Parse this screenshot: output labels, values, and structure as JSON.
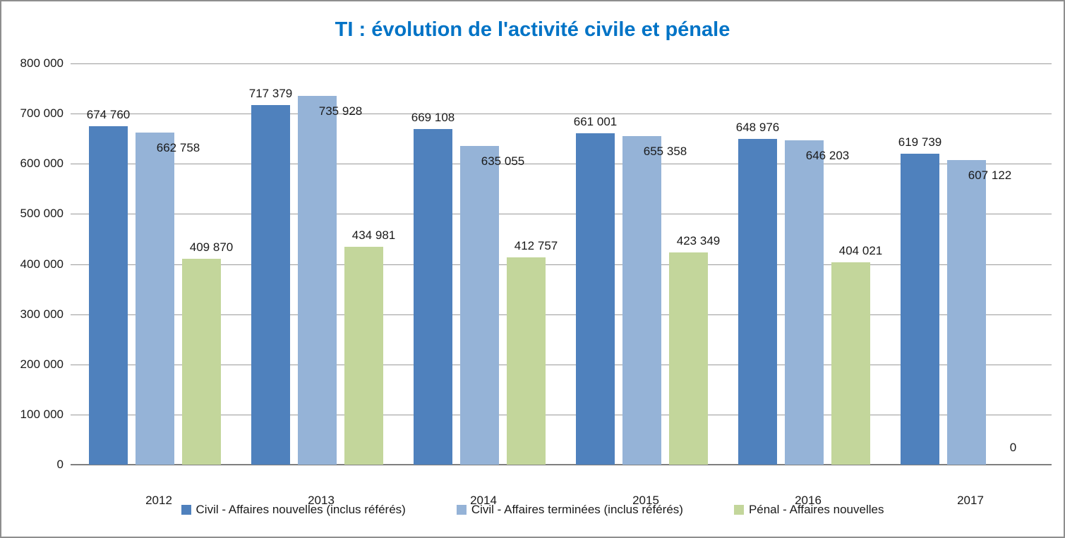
{
  "chart_data": {
    "type": "bar",
    "title": "TI : évolution de l'activité civile et pénale",
    "title_color": "#0073C6",
    "categories": [
      "2012",
      "2013",
      "2014",
      "2015",
      "2016",
      "2017"
    ],
    "series": [
      {
        "name": "Civil - Affaires nouvelles (inclus référés)",
        "color": "#4F81BD",
        "values": [
          674760,
          717379,
          669108,
          661001,
          648976,
          619739
        ]
      },
      {
        "name": "Civil - Affaires terminées (inclus référés)",
        "color": "#95B3D7",
        "values": [
          662758,
          735928,
          635055,
          655358,
          646203,
          607122
        ]
      },
      {
        "name": "Pénal - Affaires nouvelles",
        "color": "#C3D69B",
        "values": [
          409870,
          434981,
          412757,
          423349,
          404021,
          0
        ]
      }
    ],
    "xlabel": "",
    "ylabel": "",
    "ylim": [
      0,
      800000
    ],
    "ytick_step": 100000,
    "yticks": [
      "0",
      "100 000",
      "200 000",
      "300 000",
      "400 000",
      "500 000",
      "600 000",
      "700 000",
      "800 000"
    ],
    "grid": true,
    "legend_position": "bottom",
    "gridline_color": "#9B9B9B",
    "axis_color": "#7F7F7F",
    "text_color": "#1A1A1A",
    "data_labels": true
  }
}
